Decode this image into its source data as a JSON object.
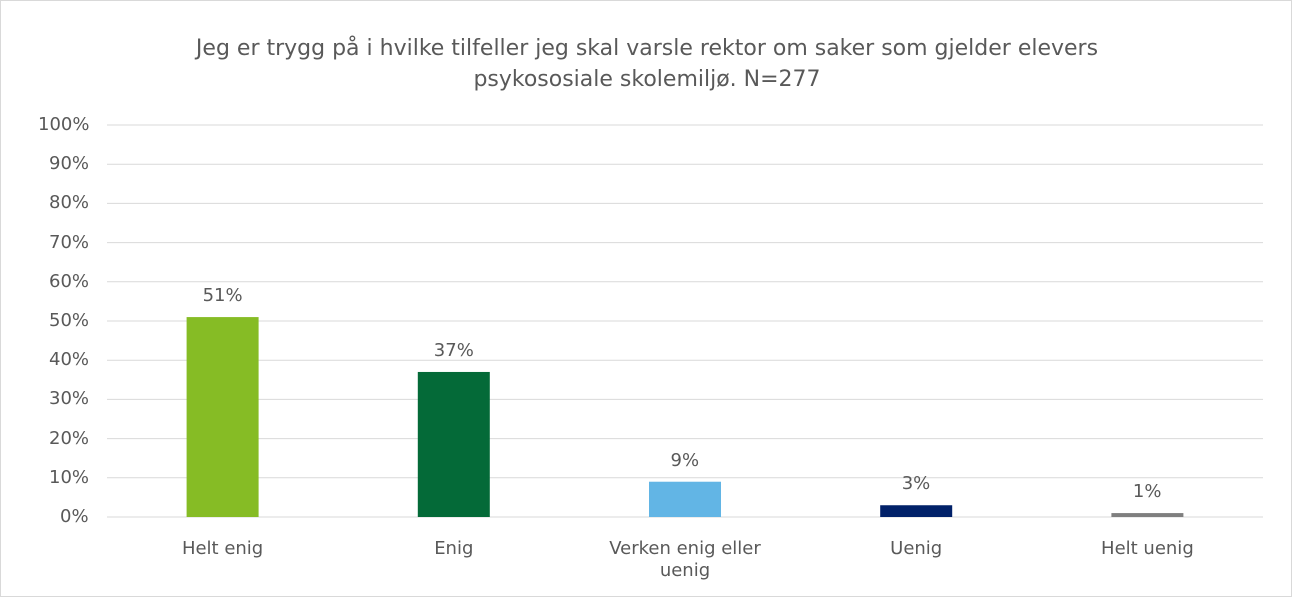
{
  "chart_data": {
    "type": "bar",
    "title": "Jeg er trygg på i hvilke tilfeller jeg skal varsle rektor om saker som gjelder elevers psykososiale skolemiljø. N=277",
    "categories": [
      "Helt enig",
      "Enig",
      "Verken enig eller uenig",
      "Uenig",
      "Helt uenig"
    ],
    "values": [
      51,
      37,
      9,
      3,
      1
    ],
    "value_labels": [
      "51%",
      "37%",
      "9%",
      "3%",
      "1%"
    ],
    "colors": [
      "#86bc25",
      "#046a38",
      "#62b5e5",
      "#012169",
      "#7f7f7f"
    ],
    "ylim": [
      0,
      100
    ],
    "yticks": [
      {
        "value": 0,
        "label": "0%"
      },
      {
        "value": 10,
        "label": "10%"
      },
      {
        "value": 20,
        "label": "20%"
      },
      {
        "value": 30,
        "label": "30%"
      },
      {
        "value": 40,
        "label": "40%"
      },
      {
        "value": 50,
        "label": "50%"
      },
      {
        "value": 60,
        "label": "60%"
      },
      {
        "value": 70,
        "label": "70%"
      },
      {
        "value": 80,
        "label": "80%"
      },
      {
        "value": 90,
        "label": "90%"
      },
      {
        "value": 100,
        "label": "100%"
      }
    ],
    "grid": true
  }
}
